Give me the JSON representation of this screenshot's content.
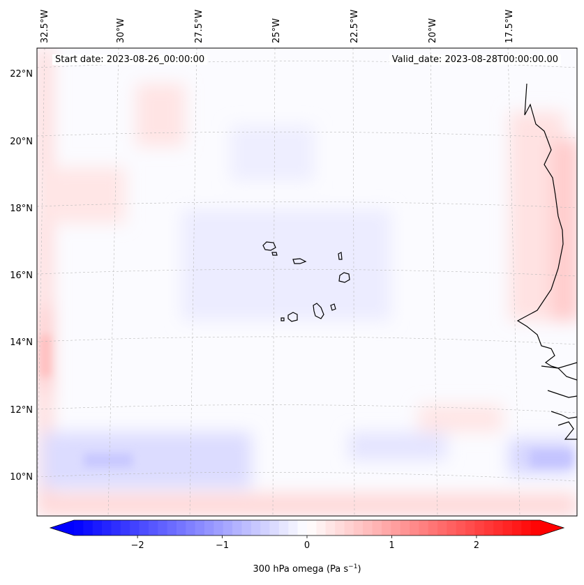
{
  "title": "",
  "start_date": "Start date: 2023-08-26_00:00:00",
  "valid_date": "Valid_date: 2023-08-28T00:00:00.00",
  "colorbar": {
    "label": "300 hPa omega (Pa s⁻¹)",
    "cmap": "bwr",
    "range": [
      -2.75,
      2.75
    ],
    "ticks": [
      -2,
      -1,
      0,
      1,
      2
    ],
    "tick_labels": [
      "−2",
      "−1",
      "0",
      "1",
      "2"
    ],
    "extend": "both",
    "color_min": "#0000ff",
    "color_mid": "#ffffff",
    "color_max": "#ff0000"
  },
  "map": {
    "projection": "lambert-conformal",
    "lon_range": [
      -33.0,
      -15.0
    ],
    "lat_range": [
      8.9,
      22.6
    ],
    "gridlines": true,
    "lon_ticks": [
      -32.5,
      -30,
      -27.5,
      -25,
      -22.5,
      -20,
      -17.5
    ],
    "lon_labels": [
      "32.5°W",
      "30°W",
      "27.5°W",
      "25°W",
      "22.5°W",
      "20°W",
      "17.5°W"
    ],
    "lat_ticks": [
      10,
      12,
      14,
      16,
      18,
      20,
      22
    ],
    "lat_labels": [
      "10°N",
      "12°N",
      "14°N",
      "16°N",
      "18°N",
      "20°N",
      "22°N"
    ],
    "coastline_color": "#000000",
    "features": [
      "Cape Verde Islands",
      "West African coastline"
    ]
  }
}
